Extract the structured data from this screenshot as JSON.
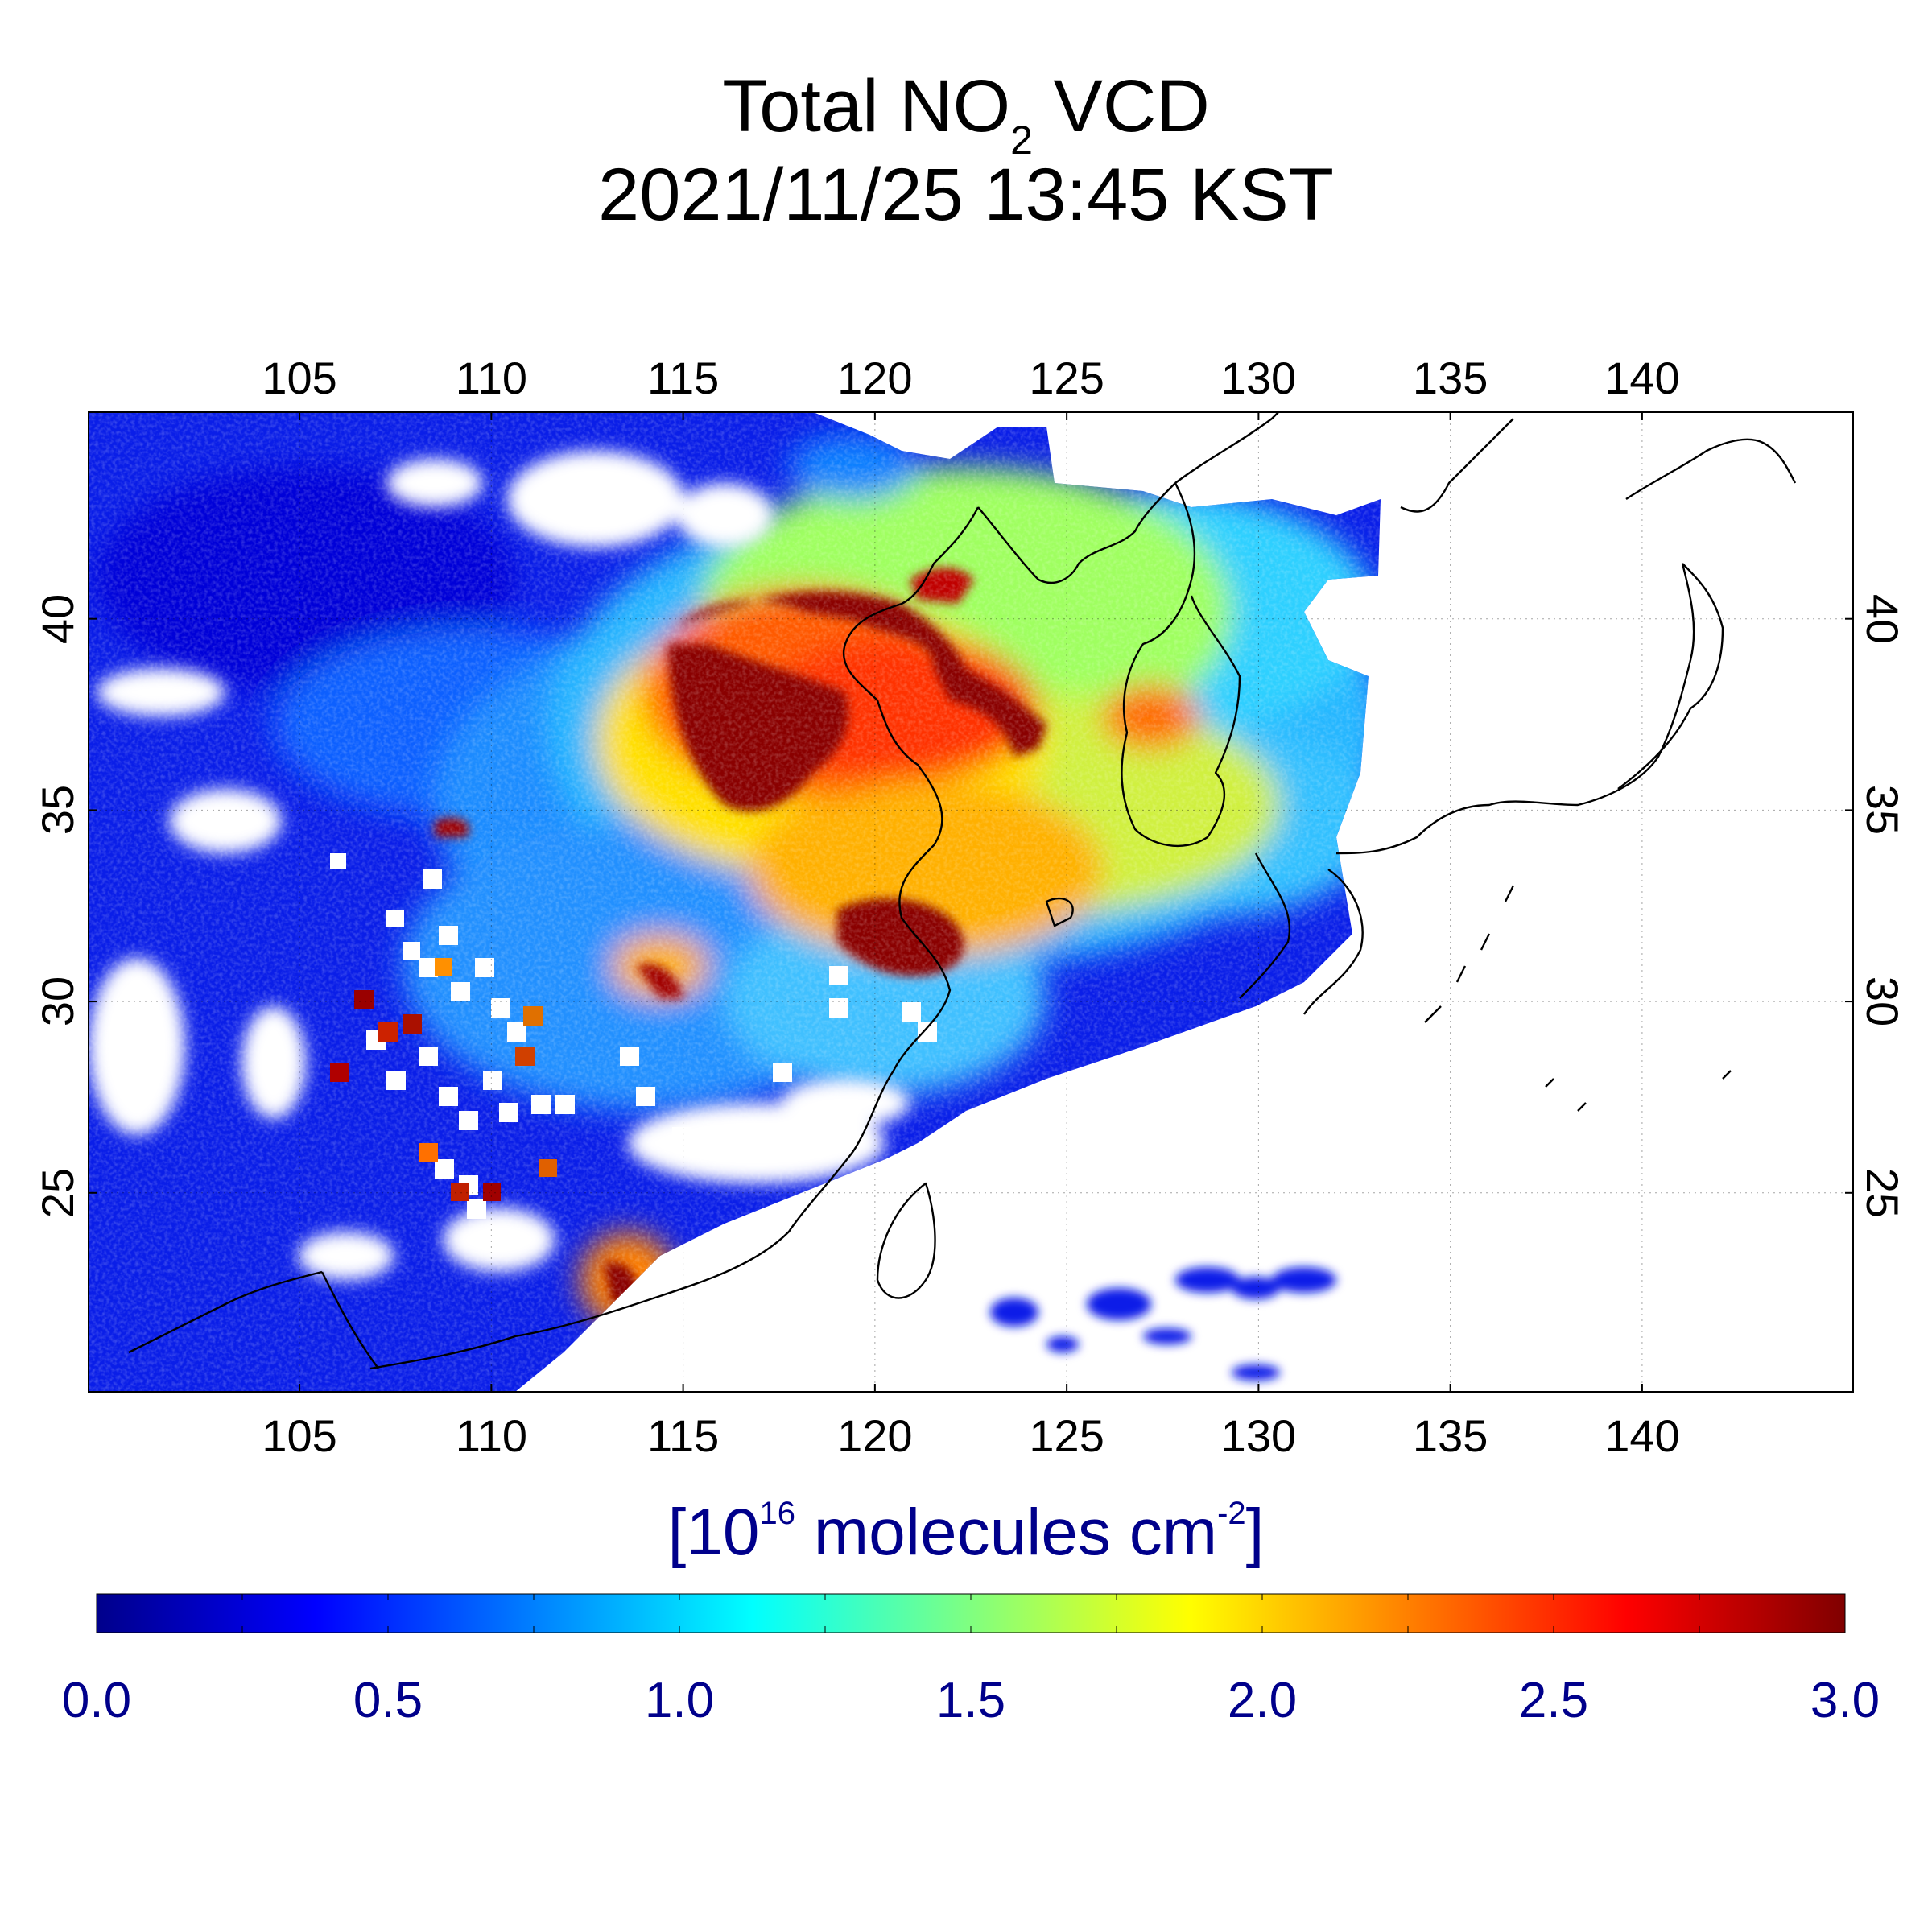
{
  "title": {
    "prefix": "Total NO",
    "subscript": "2",
    "suffix": " VCD",
    "datetime": "2021/11/25 13:45 KST"
  },
  "map": {
    "lon_range": [
      99.5,
      145.5
    ],
    "lat_range": [
      19.8,
      45.4
    ],
    "x_ticks": [
      "105",
      "110",
      "115",
      "120",
      "125",
      "130",
      "135",
      "140"
    ],
    "x_tick_values": [
      105,
      110,
      115,
      120,
      125,
      130,
      135,
      140
    ],
    "y_ticks": [
      "25",
      "30",
      "35",
      "40"
    ],
    "y_tick_values": [
      25,
      30,
      35,
      40
    ],
    "grid": "dotted",
    "data_swath_east_lon": 133
  },
  "colorbar": {
    "units_base": "[10",
    "units_exp1": "16",
    "units_mid": " molecules cm",
    "units_exp2": "-2",
    "units_end": "]",
    "ticks": [
      "0.0",
      "0.5",
      "1.0",
      "1.5",
      "2.0",
      "2.5",
      "3.0"
    ],
    "range": [
      0.0,
      3.0
    ],
    "colormap": "jet",
    "colors": [
      "#00008b",
      "#0000ff",
      "#0080ff",
      "#00ffff",
      "#80ff80",
      "#ffff00",
      "#ff8000",
      "#ff0000",
      "#800000"
    ],
    "label_color": "#00008b"
  }
}
